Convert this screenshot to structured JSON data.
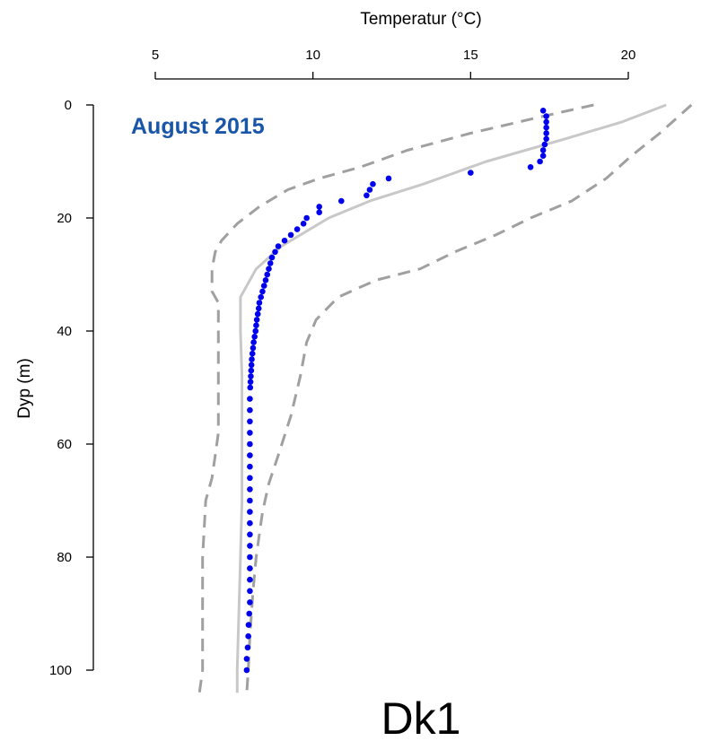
{
  "chart_data": {
    "type": "scatter",
    "title": "Dk1",
    "annotation": "August 2015",
    "xlabel": "Temperatur (°C)",
    "ylabel": "Dyp (m)",
    "x_axis_position": "top",
    "y_reversed": true,
    "xlim": [
      5,
      20
    ],
    "ylim": [
      0,
      100
    ],
    "xticks": [
      5,
      10,
      15,
      20
    ],
    "yticks": [
      0,
      20,
      40,
      60,
      80,
      100
    ],
    "grid": false,
    "colors": {
      "points": "#0000ee",
      "annotation": "#1a56a8",
      "mean_line": "#c8c8c8",
      "range_lines": "#a0a0a0"
    },
    "series": [
      {
        "kind": "points",
        "points": [
          [
            17.3,
            1
          ],
          [
            17.4,
            2
          ],
          [
            17.4,
            3
          ],
          [
            17.4,
            4
          ],
          [
            17.4,
            5
          ],
          [
            17.4,
            6
          ],
          [
            17.35,
            7
          ],
          [
            17.3,
            8
          ],
          [
            17.3,
            9
          ],
          [
            17.2,
            10
          ],
          [
            16.9,
            11
          ],
          [
            15.0,
            12
          ],
          [
            12.4,
            13
          ],
          [
            11.9,
            14
          ],
          [
            11.8,
            15
          ],
          [
            11.7,
            16
          ],
          [
            10.9,
            17
          ],
          [
            10.2,
            18
          ],
          [
            10.2,
            19
          ],
          [
            9.8,
            20
          ],
          [
            9.7,
            21
          ],
          [
            9.5,
            22
          ],
          [
            9.3,
            23
          ],
          [
            9.1,
            24
          ],
          [
            8.9,
            25
          ],
          [
            8.8,
            26
          ],
          [
            8.7,
            27
          ],
          [
            8.65,
            28
          ],
          [
            8.6,
            29
          ],
          [
            8.55,
            30
          ],
          [
            8.5,
            31
          ],
          [
            8.45,
            32
          ],
          [
            8.4,
            33
          ],
          [
            8.35,
            34
          ],
          [
            8.3,
            35
          ],
          [
            8.28,
            36
          ],
          [
            8.25,
            37
          ],
          [
            8.22,
            38
          ],
          [
            8.2,
            39
          ],
          [
            8.18,
            40
          ],
          [
            8.15,
            41
          ],
          [
            8.12,
            42
          ],
          [
            8.1,
            43
          ],
          [
            8.08,
            44
          ],
          [
            8.06,
            45
          ],
          [
            8.05,
            46
          ],
          [
            8.04,
            47
          ],
          [
            8.03,
            48
          ],
          [
            8.02,
            49
          ],
          [
            8.01,
            50
          ],
          [
            8.0,
            52
          ],
          [
            8.0,
            54
          ],
          [
            8.0,
            56
          ],
          [
            8.0,
            58
          ],
          [
            8.0,
            60
          ],
          [
            8.0,
            62
          ],
          [
            8.0,
            64
          ],
          [
            8.0,
            66
          ],
          [
            8.0,
            68
          ],
          [
            8.0,
            70
          ],
          [
            8.0,
            72
          ],
          [
            8.0,
            74
          ],
          [
            8.0,
            76
          ],
          [
            8.0,
            78
          ],
          [
            8.0,
            80
          ],
          [
            8.0,
            82
          ],
          [
            8.0,
            84
          ],
          [
            8.0,
            86
          ],
          [
            8.0,
            88
          ],
          [
            7.98,
            90
          ],
          [
            7.96,
            92
          ],
          [
            7.95,
            94
          ],
          [
            7.93,
            96
          ],
          [
            7.9,
            98
          ],
          [
            7.9,
            100
          ]
        ]
      },
      {
        "kind": "line",
        "style": "solid",
        "points": [
          [
            21.2,
            0
          ],
          [
            19.8,
            3
          ],
          [
            18.0,
            6
          ],
          [
            15.5,
            10
          ],
          [
            13.5,
            14
          ],
          [
            11.8,
            17
          ],
          [
            10.5,
            20
          ],
          [
            9.6,
            23
          ],
          [
            9.0,
            25
          ],
          [
            8.6,
            27
          ],
          [
            8.2,
            29
          ],
          [
            8.0,
            31
          ],
          [
            7.8,
            33
          ],
          [
            7.7,
            34
          ],
          [
            7.7,
            40
          ],
          [
            7.75,
            48
          ],
          [
            7.75,
            60
          ],
          [
            7.75,
            70
          ],
          [
            7.7,
            80
          ],
          [
            7.65,
            90
          ],
          [
            7.6,
            100
          ],
          [
            7.6,
            104
          ]
        ]
      },
      {
        "kind": "line",
        "style": "dashed",
        "points": [
          [
            18.9,
            0
          ],
          [
            17.3,
            2
          ],
          [
            15.0,
            5
          ],
          [
            13.0,
            8
          ],
          [
            11.5,
            11
          ],
          [
            10.2,
            13
          ],
          [
            9.2,
            15
          ],
          [
            8.3,
            18
          ],
          [
            7.6,
            21
          ],
          [
            7.1,
            24
          ],
          [
            6.9,
            26
          ],
          [
            6.8,
            29
          ],
          [
            6.8,
            33
          ],
          [
            7.0,
            35
          ],
          [
            7.0,
            40
          ],
          [
            7.0,
            48
          ],
          [
            7.0,
            58
          ],
          [
            6.9,
            62
          ],
          [
            6.8,
            66
          ],
          [
            6.6,
            70
          ],
          [
            6.55,
            75
          ],
          [
            6.5,
            80
          ],
          [
            6.5,
            90
          ],
          [
            6.5,
            100
          ],
          [
            6.4,
            104
          ]
        ]
      },
      {
        "kind": "line",
        "style": "dashed",
        "points": [
          [
            22.0,
            0
          ],
          [
            21.6,
            2
          ],
          [
            21.0,
            5
          ],
          [
            20.1,
            9
          ],
          [
            19.3,
            13
          ],
          [
            18.2,
            17
          ],
          [
            16.9,
            20
          ],
          [
            15.8,
            23
          ],
          [
            14.5,
            26
          ],
          [
            13.4,
            29
          ],
          [
            12.0,
            31
          ],
          [
            10.8,
            34
          ],
          [
            10.1,
            38
          ],
          [
            9.8,
            42
          ],
          [
            9.6,
            48
          ],
          [
            9.3,
            55
          ],
          [
            8.9,
            62
          ],
          [
            8.6,
            67
          ],
          [
            8.4,
            72
          ],
          [
            8.3,
            76
          ],
          [
            8.2,
            80
          ],
          [
            8.1,
            86
          ],
          [
            8.0,
            94
          ],
          [
            7.95,
            100
          ],
          [
            7.9,
            104
          ]
        ]
      }
    ]
  }
}
